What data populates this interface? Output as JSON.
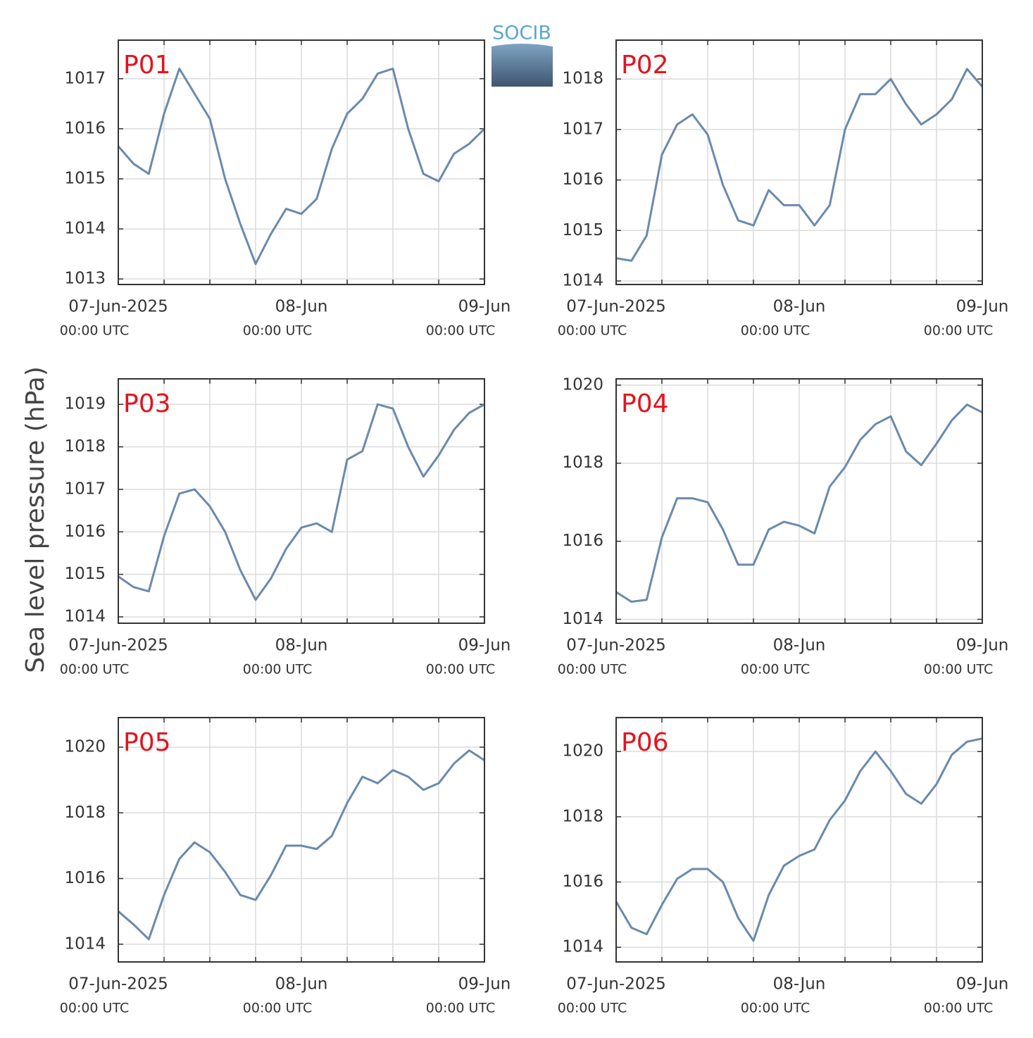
{
  "ylabel": "Sea level pressure (hPa)",
  "logo": "SOCIB",
  "chart_data": [
    {
      "type": "line",
      "title": "P01",
      "grid": true,
      "x": [
        "2025-06-07T00:00",
        "2025-06-07T02:00",
        "2025-06-07T04:00",
        "2025-06-07T06:00",
        "2025-06-07T08:00",
        "2025-06-07T10:00",
        "2025-06-07T12:00",
        "2025-06-07T14:00",
        "2025-06-07T16:00",
        "2025-06-07T18:00",
        "2025-06-07T20:00",
        "2025-06-07T22:00",
        "2025-06-08T00:00",
        "2025-06-08T02:00",
        "2025-06-08T04:00",
        "2025-06-08T06:00",
        "2025-06-08T08:00",
        "2025-06-08T10:00",
        "2025-06-08T12:00",
        "2025-06-08T14:00",
        "2025-06-08T16:00",
        "2025-06-08T18:00",
        "2025-06-08T20:00",
        "2025-06-08T22:00",
        "2025-06-09T00:00"
      ],
      "series": [
        {
          "name": "P01",
          "color": "#6a8aad",
          "values": [
            1015.65,
            1015.3,
            1015.1,
            1016.3,
            1017.2,
            1016.7,
            1016.2,
            1015.0,
            1014.1,
            1013.3,
            1013.9,
            1014.4,
            1014.3,
            1014.6,
            1015.6,
            1016.3,
            1016.6,
            1017.1,
            1017.2,
            1016.0,
            1015.1,
            1014.95,
            1015.5,
            1015.7,
            1016.0
          ]
        }
      ],
      "xlim": [
        "2025-06-07T00:00",
        "2025-06-09T00:00"
      ],
      "xticks": [
        {
          "value": "2025-06-07T00:00",
          "label": "07-Jun-2025",
          "sublabel": "00:00 UTC"
        },
        "2025-06-07T06:00",
        "2025-06-07T12:00",
        "2025-06-07T18:00",
        {
          "value": "2025-06-08T00:00",
          "label": "08-Jun",
          "sublabel": "00:00 UTC"
        },
        "2025-06-08T06:00",
        "2025-06-08T12:00",
        "2025-06-08T18:00",
        {
          "value": "2025-06-09T00:00",
          "label": "09-Jun",
          "sublabel": "00:00 UTC"
        }
      ],
      "ylim": [
        1012.89,
        1017.77
      ],
      "yticks": [
        1013,
        1014,
        1015,
        1016,
        1017
      ]
    },
    {
      "type": "line",
      "title": "P02",
      "grid": true,
      "x": [
        "2025-06-07T00:00",
        "2025-06-07T02:00",
        "2025-06-07T04:00",
        "2025-06-07T06:00",
        "2025-06-07T08:00",
        "2025-06-07T10:00",
        "2025-06-07T12:00",
        "2025-06-07T14:00",
        "2025-06-07T16:00",
        "2025-06-07T18:00",
        "2025-06-07T20:00",
        "2025-06-07T22:00",
        "2025-06-08T00:00",
        "2025-06-08T02:00",
        "2025-06-08T04:00",
        "2025-06-08T06:00",
        "2025-06-08T08:00",
        "2025-06-08T10:00",
        "2025-06-08T12:00",
        "2025-06-08T14:00",
        "2025-06-08T16:00",
        "2025-06-08T18:00",
        "2025-06-08T20:00",
        "2025-06-08T22:00",
        "2025-06-09T00:00"
      ],
      "series": [
        {
          "name": "P02",
          "color": "#6a8aad",
          "values": [
            1014.45,
            1014.4,
            1014.9,
            1016.5,
            1017.1,
            1017.3,
            1016.9,
            1015.9,
            1015.2,
            1015.1,
            1015.8,
            1015.5,
            1015.5,
            1015.1,
            1015.5,
            1017.0,
            1017.7,
            1017.7,
            1018.0,
            1017.5,
            1017.1,
            1017.3,
            1017.6,
            1018.2,
            1017.85
          ]
        }
      ],
      "xlim": [
        "2025-06-07T00:00",
        "2025-06-09T00:00"
      ],
      "xticks": [
        {
          "value": "2025-06-07T00:00",
          "label": "07-Jun-2025",
          "sublabel": "00:00 UTC"
        },
        "2025-06-07T06:00",
        "2025-06-07T12:00",
        "2025-06-07T18:00",
        {
          "value": "2025-06-08T00:00",
          "label": "08-Jun",
          "sublabel": "00:00 UTC"
        },
        "2025-06-08T06:00",
        "2025-06-08T12:00",
        "2025-06-08T18:00",
        {
          "value": "2025-06-09T00:00",
          "label": "09-Jun",
          "sublabel": "00:00 UTC"
        }
      ],
      "ylim": [
        1013.93,
        1018.77
      ],
      "yticks": [
        1014,
        1015,
        1016,
        1017,
        1018
      ]
    },
    {
      "type": "line",
      "title": "P03",
      "grid": true,
      "x": [
        "2025-06-07T00:00",
        "2025-06-07T02:00",
        "2025-06-07T04:00",
        "2025-06-07T06:00",
        "2025-06-07T08:00",
        "2025-06-07T10:00",
        "2025-06-07T12:00",
        "2025-06-07T14:00",
        "2025-06-07T16:00",
        "2025-06-07T18:00",
        "2025-06-07T20:00",
        "2025-06-07T22:00",
        "2025-06-08T00:00",
        "2025-06-08T02:00",
        "2025-06-08T04:00",
        "2025-06-08T06:00",
        "2025-06-08T08:00",
        "2025-06-08T10:00",
        "2025-06-08T12:00",
        "2025-06-08T14:00",
        "2025-06-08T16:00",
        "2025-06-08T18:00",
        "2025-06-08T20:00",
        "2025-06-08T22:00",
        "2025-06-09T00:00"
      ],
      "series": [
        {
          "name": "P03",
          "color": "#6a8aad",
          "values": [
            1014.95,
            1014.7,
            1014.6,
            1015.9,
            1016.9,
            1017.0,
            1016.6,
            1016.0,
            1015.1,
            1014.4,
            1014.9,
            1015.6,
            1016.1,
            1016.2,
            1016.0,
            1017.7,
            1017.9,
            1019.0,
            1018.9,
            1018.0,
            1017.3,
            1017.8,
            1018.4,
            1018.8,
            1019.0
          ]
        }
      ],
      "xlim": [
        "2025-06-07T00:00",
        "2025-06-09T00:00"
      ],
      "xticks": [
        {
          "value": "2025-06-07T00:00",
          "label": "07-Jun-2025",
          "sublabel": "00:00 UTC"
        },
        "2025-06-07T06:00",
        "2025-06-07T12:00",
        "2025-06-07T18:00",
        {
          "value": "2025-06-08T00:00",
          "label": "08-Jun",
          "sublabel": "00:00 UTC"
        },
        "2025-06-08T06:00",
        "2025-06-08T12:00",
        "2025-06-08T18:00",
        {
          "value": "2025-06-09T00:00",
          "label": "09-Jun",
          "sublabel": "00:00 UTC"
        }
      ],
      "ylim": [
        1013.85,
        1019.6
      ],
      "yticks": [
        1014,
        1015,
        1016,
        1017,
        1018,
        1019
      ]
    },
    {
      "type": "line",
      "title": "P04",
      "grid": true,
      "x": [
        "2025-06-07T00:00",
        "2025-06-07T02:00",
        "2025-06-07T04:00",
        "2025-06-07T06:00",
        "2025-06-07T08:00",
        "2025-06-07T10:00",
        "2025-06-07T12:00",
        "2025-06-07T14:00",
        "2025-06-07T16:00",
        "2025-06-07T18:00",
        "2025-06-07T20:00",
        "2025-06-07T22:00",
        "2025-06-08T00:00",
        "2025-06-08T02:00",
        "2025-06-08T04:00",
        "2025-06-08T06:00",
        "2025-06-08T08:00",
        "2025-06-08T10:00",
        "2025-06-08T12:00",
        "2025-06-08T14:00",
        "2025-06-08T16:00",
        "2025-06-08T18:00",
        "2025-06-08T20:00",
        "2025-06-08T22:00",
        "2025-06-09T00:00"
      ],
      "series": [
        {
          "name": "P04",
          "color": "#6a8aad",
          "values": [
            1014.7,
            1014.45,
            1014.5,
            1016.1,
            1017.1,
            1017.1,
            1017.0,
            1016.3,
            1015.4,
            1015.4,
            1016.3,
            1016.5,
            1016.4,
            1016.2,
            1017.4,
            1017.9,
            1018.6,
            1019.0,
            1019.2,
            1018.3,
            1017.95,
            1018.5,
            1019.1,
            1019.5,
            1019.3
          ]
        }
      ],
      "xlim": [
        "2025-06-07T00:00",
        "2025-06-09T00:00"
      ],
      "xticks": [
        {
          "value": "2025-06-07T00:00",
          "label": "07-Jun-2025",
          "sublabel": "00:00 UTC"
        },
        "2025-06-07T06:00",
        "2025-06-07T12:00",
        "2025-06-07T18:00",
        {
          "value": "2025-06-08T00:00",
          "label": "08-Jun",
          "sublabel": "00:00 UTC"
        },
        "2025-06-08T06:00",
        "2025-06-08T12:00",
        "2025-06-08T18:00",
        {
          "value": "2025-06-09T00:00",
          "label": "09-Jun",
          "sublabel": "00:00 UTC"
        }
      ],
      "ylim": [
        1013.9,
        1020.16
      ],
      "yticks": [
        1014,
        1016,
        1018,
        1020
      ]
    },
    {
      "type": "line",
      "title": "P05",
      "grid": true,
      "x": [
        "2025-06-07T00:00",
        "2025-06-07T02:00",
        "2025-06-07T04:00",
        "2025-06-07T06:00",
        "2025-06-07T08:00",
        "2025-06-07T10:00",
        "2025-06-07T12:00",
        "2025-06-07T14:00",
        "2025-06-07T16:00",
        "2025-06-07T18:00",
        "2025-06-07T20:00",
        "2025-06-07T22:00",
        "2025-06-08T00:00",
        "2025-06-08T02:00",
        "2025-06-08T04:00",
        "2025-06-08T06:00",
        "2025-06-08T08:00",
        "2025-06-08T10:00",
        "2025-06-08T12:00",
        "2025-06-08T14:00",
        "2025-06-08T16:00",
        "2025-06-08T18:00",
        "2025-06-08T20:00",
        "2025-06-08T22:00",
        "2025-06-09T00:00"
      ],
      "series": [
        {
          "name": "P05",
          "color": "#6a8aad",
          "values": [
            1015.0,
            1014.6,
            1014.15,
            1015.5,
            1016.6,
            1017.1,
            1016.8,
            1016.2,
            1015.5,
            1015.35,
            1016.1,
            1017.0,
            1017.0,
            1016.9,
            1017.3,
            1018.3,
            1019.1,
            1018.9,
            1019.3,
            1019.1,
            1018.7,
            1018.9,
            1019.5,
            1019.9,
            1019.6
          ]
        }
      ],
      "xlim": [
        "2025-06-07T00:00",
        "2025-06-09T00:00"
      ],
      "xticks": [
        {
          "value": "2025-06-07T00:00",
          "label": "07-Jun-2025",
          "sublabel": "00:00 UTC"
        },
        "2025-06-07T06:00",
        "2025-06-07T12:00",
        "2025-06-07T18:00",
        {
          "value": "2025-06-08T00:00",
          "label": "08-Jun",
          "sublabel": "00:00 UTC"
        },
        "2025-06-08T06:00",
        "2025-06-08T12:00",
        "2025-06-08T18:00",
        {
          "value": "2025-06-09T00:00",
          "label": "09-Jun",
          "sublabel": "00:00 UTC"
        }
      ],
      "ylim": [
        1013.46,
        1020.9
      ],
      "yticks": [
        1014,
        1016,
        1018,
        1020
      ]
    },
    {
      "type": "line",
      "title": "P06",
      "grid": true,
      "x": [
        "2025-06-07T00:00",
        "2025-06-07T02:00",
        "2025-06-07T04:00",
        "2025-06-07T06:00",
        "2025-06-07T08:00",
        "2025-06-07T10:00",
        "2025-06-07T12:00",
        "2025-06-07T14:00",
        "2025-06-07T16:00",
        "2025-06-07T18:00",
        "2025-06-07T20:00",
        "2025-06-07T22:00",
        "2025-06-08T00:00",
        "2025-06-08T02:00",
        "2025-06-08T04:00",
        "2025-06-08T06:00",
        "2025-06-08T08:00",
        "2025-06-08T10:00",
        "2025-06-08T12:00",
        "2025-06-08T14:00",
        "2025-06-08T16:00",
        "2025-06-08T18:00",
        "2025-06-08T20:00",
        "2025-06-08T22:00",
        "2025-06-09T00:00"
      ],
      "series": [
        {
          "name": "P06",
          "color": "#6a8aad",
          "values": [
            1015.4,
            1014.6,
            1014.4,
            1015.3,
            1016.1,
            1016.4,
            1016.4,
            1016.0,
            1014.9,
            1014.2,
            1015.6,
            1016.5,
            1016.8,
            1017.0,
            1017.9,
            1018.5,
            1019.4,
            1020.0,
            1019.4,
            1018.7,
            1018.4,
            1019.0,
            1019.9,
            1020.3,
            1020.4
          ]
        }
      ],
      "xlim": [
        "2025-06-07T00:00",
        "2025-06-09T00:00"
      ],
      "xticks": [
        {
          "value": "2025-06-07T00:00",
          "label": "07-Jun-2025",
          "sublabel": "00:00 UTC"
        },
        "2025-06-07T06:00",
        "2025-06-07T12:00",
        "2025-06-07T18:00",
        {
          "value": "2025-06-08T00:00",
          "label": "08-Jun",
          "sublabel": "00:00 UTC"
        },
        "2025-06-08T06:00",
        "2025-06-08T12:00",
        "2025-06-08T18:00",
        {
          "value": "2025-06-09T00:00",
          "label": "09-Jun",
          "sublabel": "00:00 UTC"
        }
      ],
      "ylim": [
        1013.55,
        1021.04
      ],
      "yticks": [
        1014,
        1016,
        1018,
        1020
      ]
    }
  ]
}
